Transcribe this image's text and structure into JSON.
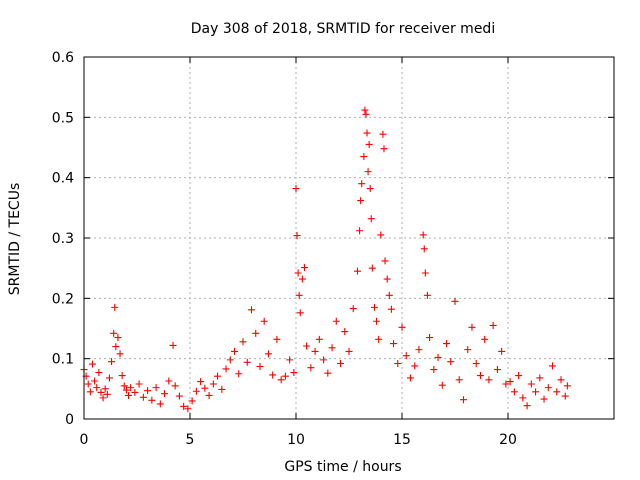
{
  "chart_data": {
    "type": "scatter",
    "title": "Day 308 of 2018, SRMTID for receiver medi",
    "xlabel": "GPS time / hours",
    "ylabel": "SRMTID / TECUs",
    "xlim": [
      0,
      25
    ],
    "ylim": [
      0,
      0.6
    ],
    "x_ticks": [
      0,
      5,
      10,
      15,
      20
    ],
    "x_tick_labels": [
      "0",
      "5",
      "10",
      "15",
      "20"
    ],
    "y_ticks": [
      0,
      0.1,
      0.2,
      0.3,
      0.4,
      0.5,
      0.6
    ],
    "y_tick_labels": [
      "0",
      "0.1",
      "0.2",
      "0.3",
      "0.4",
      "0.5",
      "0.6"
    ],
    "grid": true,
    "marker": "plus",
    "color": "#ff0000",
    "series": [
      {
        "name": "SRMTID",
        "points": [
          [
            0.0,
            0.082
          ],
          [
            0.1,
            0.071
          ],
          [
            0.2,
            0.058
          ],
          [
            0.3,
            0.045
          ],
          [
            0.4,
            0.091
          ],
          [
            0.5,
            0.063
          ],
          [
            0.6,
            0.052
          ],
          [
            0.7,
            0.077
          ],
          [
            0.8,
            0.044
          ],
          [
            0.9,
            0.035
          ],
          [
            1.0,
            0.05
          ],
          [
            1.1,
            0.041
          ],
          [
            1.2,
            0.068
          ],
          [
            1.3,
            0.095
          ],
          [
            1.4,
            0.142
          ],
          [
            1.45,
            0.185
          ],
          [
            1.5,
            0.12
          ],
          [
            1.6,
            0.135
          ],
          [
            1.7,
            0.108
          ],
          [
            1.8,
            0.072
          ],
          [
            1.9,
            0.055
          ],
          [
            2.0,
            0.048
          ],
          [
            2.1,
            0.039
          ],
          [
            2.2,
            0.052
          ],
          [
            2.4,
            0.044
          ],
          [
            2.6,
            0.058
          ],
          [
            2.8,
            0.036
          ],
          [
            3.0,
            0.047
          ],
          [
            3.2,
            0.031
          ],
          [
            3.4,
            0.052
          ],
          [
            3.6,
            0.025
          ],
          [
            3.8,
            0.042
          ],
          [
            4.0,
            0.063
          ],
          [
            4.2,
            0.122
          ],
          [
            4.3,
            0.055
          ],
          [
            4.5,
            0.038
          ],
          [
            4.7,
            0.021
          ],
          [
            4.9,
            0.017
          ],
          [
            5.1,
            0.03
          ],
          [
            5.3,
            0.046
          ],
          [
            5.5,
            0.062
          ],
          [
            5.7,
            0.051
          ],
          [
            5.9,
            0.039
          ],
          [
            6.1,
            0.058
          ],
          [
            6.3,
            0.071
          ],
          [
            6.5,
            0.049
          ],
          [
            6.7,
            0.083
          ],
          [
            6.9,
            0.098
          ],
          [
            7.1,
            0.112
          ],
          [
            7.3,
            0.075
          ],
          [
            7.5,
            0.128
          ],
          [
            7.7,
            0.094
          ],
          [
            7.9,
            0.181
          ],
          [
            8.1,
            0.142
          ],
          [
            8.3,
            0.087
          ],
          [
            8.5,
            0.162
          ],
          [
            8.7,
            0.108
          ],
          [
            8.9,
            0.073
          ],
          [
            9.1,
            0.132
          ],
          [
            9.3,
            0.065
          ],
          [
            9.5,
            0.071
          ],
          [
            9.7,
            0.098
          ],
          [
            9.9,
            0.077
          ],
          [
            10.0,
            0.382
          ],
          [
            10.05,
            0.304
          ],
          [
            10.1,
            0.242
          ],
          [
            10.15,
            0.205
          ],
          [
            10.2,
            0.176
          ],
          [
            10.3,
            0.232
          ],
          [
            10.4,
            0.251
          ],
          [
            10.5,
            0.121
          ],
          [
            10.7,
            0.085
          ],
          [
            10.9,
            0.112
          ],
          [
            11.1,
            0.132
          ],
          [
            11.3,
            0.098
          ],
          [
            11.5,
            0.076
          ],
          [
            11.7,
            0.118
          ],
          [
            11.9,
            0.162
          ],
          [
            12.1,
            0.092
          ],
          [
            12.3,
            0.145
          ],
          [
            12.5,
            0.112
          ],
          [
            12.7,
            0.183
          ],
          [
            12.9,
            0.245
          ],
          [
            13.0,
            0.312
          ],
          [
            13.05,
            0.362
          ],
          [
            13.1,
            0.39
          ],
          [
            13.2,
            0.435
          ],
          [
            13.25,
            0.512
          ],
          [
            13.3,
            0.505
          ],
          [
            13.35,
            0.474
          ],
          [
            13.4,
            0.41
          ],
          [
            13.45,
            0.455
          ],
          [
            13.5,
            0.382
          ],
          [
            13.55,
            0.332
          ],
          [
            13.6,
            0.25
          ],
          [
            13.7,
            0.185
          ],
          [
            13.8,
            0.162
          ],
          [
            13.9,
            0.132
          ],
          [
            14.0,
            0.305
          ],
          [
            14.1,
            0.472
          ],
          [
            14.15,
            0.448
          ],
          [
            14.2,
            0.262
          ],
          [
            14.3,
            0.232
          ],
          [
            14.4,
            0.205
          ],
          [
            14.5,
            0.182
          ],
          [
            14.6,
            0.125
          ],
          [
            14.8,
            0.092
          ],
          [
            15.0,
            0.152
          ],
          [
            15.2,
            0.105
          ],
          [
            15.4,
            0.068
          ],
          [
            15.6,
            0.088
          ],
          [
            15.8,
            0.115
          ],
          [
            16.0,
            0.305
          ],
          [
            16.05,
            0.282
          ],
          [
            16.1,
            0.242
          ],
          [
            16.2,
            0.205
          ],
          [
            16.3,
            0.135
          ],
          [
            16.5,
            0.082
          ],
          [
            16.7,
            0.102
          ],
          [
            16.9,
            0.056
          ],
          [
            17.1,
            0.125
          ],
          [
            17.3,
            0.095
          ],
          [
            17.5,
            0.195
          ],
          [
            17.7,
            0.065
          ],
          [
            17.9,
            0.032
          ],
          [
            18.1,
            0.115
          ],
          [
            18.3,
            0.152
          ],
          [
            18.5,
            0.092
          ],
          [
            18.7,
            0.072
          ],
          [
            18.9,
            0.132
          ],
          [
            19.1,
            0.065
          ],
          [
            19.3,
            0.155
          ],
          [
            19.5,
            0.082
          ],
          [
            19.7,
            0.112
          ],
          [
            19.9,
            0.058
          ],
          [
            20.1,
            0.062
          ],
          [
            20.3,
            0.045
          ],
          [
            20.5,
            0.072
          ],
          [
            20.7,
            0.035
          ],
          [
            20.9,
            0.022
          ],
          [
            21.1,
            0.058
          ],
          [
            21.3,
            0.045
          ],
          [
            21.5,
            0.068
          ],
          [
            21.7,
            0.033
          ],
          [
            21.9,
            0.052
          ],
          [
            22.1,
            0.088
          ],
          [
            22.3,
            0.045
          ],
          [
            22.5,
            0.065
          ],
          [
            22.7,
            0.038
          ],
          [
            22.8,
            0.055
          ]
        ]
      }
    ]
  }
}
